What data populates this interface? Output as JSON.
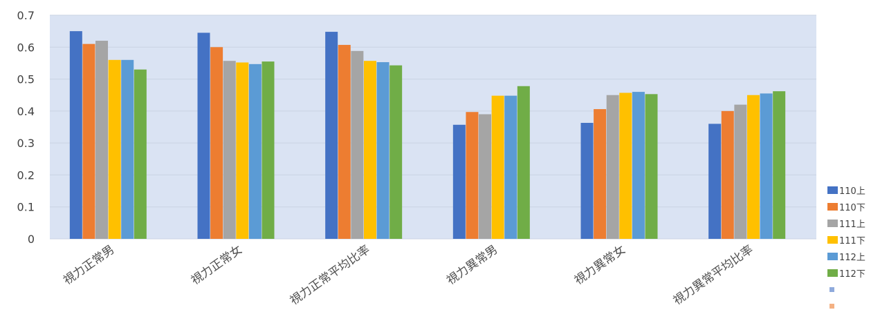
{
  "chart_data": {
    "type": "bar",
    "title": "",
    "xlabel": "",
    "ylabel": "",
    "ylim": [
      0,
      0.7
    ],
    "yticks": [
      "0",
      "0.1",
      "0.2",
      "0.3",
      "0.4",
      "0.5",
      "0.6",
      "0.7"
    ],
    "grid": true,
    "legend_position": "right-bottom",
    "plot_background": "#dae3f3",
    "categories": [
      "視力正常男",
      "視力正常女",
      "視力正常平均比率",
      "視力異常男",
      "視力異常女",
      "視力異常平均比率"
    ],
    "series": [
      {
        "name": "110上",
        "color": "#4472c4",
        "values": [
          0.65,
          0.645,
          0.648,
          0.357,
          0.363,
          0.36
        ]
      },
      {
        "name": "110下",
        "color": "#ed7d31",
        "values": [
          0.61,
          0.6,
          0.607,
          0.397,
          0.406,
          0.4
        ]
      },
      {
        "name": "111上",
        "color": "#a5a5a5",
        "values": [
          0.62,
          0.557,
          0.588,
          0.39,
          0.45,
          0.42
        ]
      },
      {
        "name": "111下",
        "color": "#ffc000",
        "values": [
          0.56,
          0.552,
          0.557,
          0.448,
          0.457,
          0.45
        ]
      },
      {
        "name": "112上",
        "color": "#5b9bd5",
        "values": [
          0.56,
          0.547,
          0.553,
          0.448,
          0.46,
          0.455
        ]
      },
      {
        "name": "112下",
        "color": "#70ad47",
        "values": [
          0.53,
          0.555,
          0.543,
          0.478,
          0.453,
          0.462
        ]
      }
    ],
    "extra_legend_markers": [
      "#8faadc",
      "#f4b183"
    ]
  }
}
